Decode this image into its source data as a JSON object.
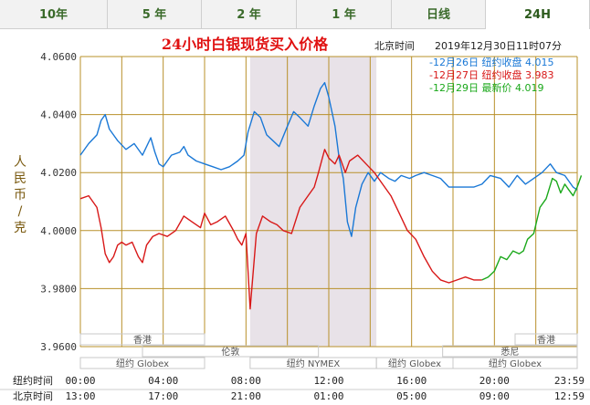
{
  "tabs": [
    {
      "label": "10年",
      "active": false
    },
    {
      "label": "5 年",
      "active": false
    },
    {
      "label": "2 年",
      "active": false
    },
    {
      "label": "1 年",
      "active": false
    },
    {
      "label": "日线",
      "active": false
    },
    {
      "label": "24H",
      "active": true
    }
  ],
  "colors": {
    "grid": "#b8902a",
    "blue": "#1a78d6",
    "red": "#d81818",
    "green": "#1aa81a",
    "title": "#e01010",
    "axis_text": "#333333",
    "shade": "#e8e2e8"
  },
  "chart_data": {
    "type": "line",
    "title": "24小时白银现货买入价格",
    "timestamp_label": "北京时间",
    "timestamp": "2019年12月30日11时07分",
    "ylabel": "人民币/克",
    "ylim": [
      3.96,
      4.06
    ],
    "yticks": [
      "4.0600",
      "4.0400",
      "4.0200",
      "4.0000",
      "3.9800",
      "3.9600"
    ],
    "x_ny": [
      "00:00",
      "04:00",
      "08:00",
      "12:00",
      "16:00",
      "20:00",
      "23:59"
    ],
    "x_bj": [
      "13:00",
      "17:00",
      "21:00",
      "01:00",
      "05:00",
      "09:00",
      "12:59"
    ],
    "x_row_labels": [
      "纽约时间",
      "北京时间"
    ],
    "xlim": [
      0,
      24
    ],
    "nymex_shade": [
      8.2,
      14.3
    ],
    "legend": [
      {
        "date": "12月26日",
        "label": "纽约收盘",
        "value": "4.015",
        "color": "#1a78d6"
      },
      {
        "date": "12月27日",
        "label": "纽约收盘",
        "value": "3.983",
        "color": "#d81818"
      },
      {
        "date": "12月29日",
        "label": "最新价",
        "value": "4.019",
        "color": "#1aa81a"
      }
    ],
    "series": [
      {
        "name": "12月26日",
        "color": "#1a78d6",
        "points": [
          [
            0,
            4.026
          ],
          [
            0.4,
            4.03
          ],
          [
            0.8,
            4.033
          ],
          [
            1.0,
            4.038
          ],
          [
            1.2,
            4.04
          ],
          [
            1.4,
            4.035
          ],
          [
            1.8,
            4.031
          ],
          [
            2.2,
            4.028
          ],
          [
            2.6,
            4.03
          ],
          [
            3.0,
            4.026
          ],
          [
            3.4,
            4.032
          ],
          [
            3.6,
            4.027
          ],
          [
            3.8,
            4.023
          ],
          [
            4.0,
            4.022
          ],
          [
            4.4,
            4.026
          ],
          [
            4.8,
            4.027
          ],
          [
            5.0,
            4.029
          ],
          [
            5.2,
            4.026
          ],
          [
            5.6,
            4.024
          ],
          [
            6.0,
            4.023
          ],
          [
            6.4,
            4.022
          ],
          [
            6.8,
            4.021
          ],
          [
            7.2,
            4.022
          ],
          [
            7.6,
            4.024
          ],
          [
            7.9,
            4.026
          ],
          [
            8.1,
            4.034
          ],
          [
            8.4,
            4.041
          ],
          [
            8.7,
            4.039
          ],
          [
            9.0,
            4.033
          ],
          [
            9.3,
            4.031
          ],
          [
            9.6,
            4.029
          ],
          [
            10.0,
            4.036
          ],
          [
            10.3,
            4.041
          ],
          [
            10.6,
            4.039
          ],
          [
            11.0,
            4.036
          ],
          [
            11.3,
            4.043
          ],
          [
            11.6,
            4.049
          ],
          [
            11.8,
            4.051
          ],
          [
            12.0,
            4.046
          ],
          [
            12.3,
            4.036
          ],
          [
            12.5,
            4.025
          ],
          [
            12.7,
            4.018
          ],
          [
            12.9,
            4.003
          ],
          [
            13.1,
            3.998
          ],
          [
            13.3,
            4.008
          ],
          [
            13.6,
            4.016
          ],
          [
            13.9,
            4.02
          ],
          [
            14.2,
            4.017
          ],
          [
            14.5,
            4.02
          ],
          [
            14.9,
            4.018
          ],
          [
            15.2,
            4.017
          ],
          [
            15.5,
            4.019
          ],
          [
            15.9,
            4.018
          ],
          [
            16.2,
            4.019
          ],
          [
            16.6,
            4.02
          ],
          [
            17.0,
            4.019
          ],
          [
            17.4,
            4.018
          ],
          [
            17.8,
            4.015
          ],
          [
            18.5,
            4.015
          ],
          [
            19.0,
            4.015
          ],
          [
            19.4,
            4.016
          ],
          [
            19.8,
            4.019
          ],
          [
            20.3,
            4.018
          ],
          [
            20.7,
            4.015
          ],
          [
            21.1,
            4.019
          ],
          [
            21.5,
            4.016
          ],
          [
            21.9,
            4.018
          ],
          [
            22.3,
            4.02
          ],
          [
            22.7,
            4.023
          ],
          [
            23.0,
            4.02
          ],
          [
            23.4,
            4.019
          ],
          [
            23.8,
            4.015
          ],
          [
            24.0,
            4.014
          ]
        ]
      },
      {
        "name": "12月27日",
        "color": "#d81818",
        "points": [
          [
            0,
            4.011
          ],
          [
            0.4,
            4.012
          ],
          [
            0.8,
            4.008
          ],
          [
            1.0,
            4.001
          ],
          [
            1.2,
            3.992
          ],
          [
            1.4,
            3.989
          ],
          [
            1.6,
            3.991
          ],
          [
            1.8,
            3.995
          ],
          [
            2.0,
            3.996
          ],
          [
            2.2,
            3.995
          ],
          [
            2.5,
            3.996
          ],
          [
            2.8,
            3.991
          ],
          [
            3.0,
            3.989
          ],
          [
            3.2,
            3.995
          ],
          [
            3.5,
            3.998
          ],
          [
            3.8,
            3.999
          ],
          [
            4.2,
            3.998
          ],
          [
            4.6,
            4.0
          ],
          [
            5.0,
            4.005
          ],
          [
            5.4,
            4.003
          ],
          [
            5.8,
            4.001
          ],
          [
            6.0,
            4.006
          ],
          [
            6.3,
            4.002
          ],
          [
            6.6,
            4.003
          ],
          [
            7.0,
            4.005
          ],
          [
            7.4,
            4.0
          ],
          [
            7.6,
            3.997
          ],
          [
            7.8,
            3.995
          ],
          [
            8.0,
            3.999
          ],
          [
            8.2,
            3.973
          ],
          [
            8.5,
            3.999
          ],
          [
            8.8,
            4.005
          ],
          [
            9.2,
            4.003
          ],
          [
            9.5,
            4.002
          ],
          [
            9.8,
            4.0
          ],
          [
            10.2,
            3.999
          ],
          [
            10.6,
            4.008
          ],
          [
            11.0,
            4.012
          ],
          [
            11.3,
            4.015
          ],
          [
            11.5,
            4.02
          ],
          [
            11.8,
            4.028
          ],
          [
            12.0,
            4.025
          ],
          [
            12.3,
            4.023
          ],
          [
            12.5,
            4.026
          ],
          [
            12.8,
            4.02
          ],
          [
            13.0,
            4.024
          ],
          [
            13.4,
            4.026
          ],
          [
            13.8,
            4.023
          ],
          [
            14.2,
            4.02
          ],
          [
            14.6,
            4.016
          ],
          [
            15.0,
            4.012
          ],
          [
            15.4,
            4.006
          ],
          [
            15.8,
            4.0
          ],
          [
            16.2,
            3.997
          ],
          [
            16.6,
            3.991
          ],
          [
            17.0,
            3.986
          ],
          [
            17.4,
            3.983
          ],
          [
            17.8,
            3.982
          ],
          [
            18.2,
            3.983
          ],
          [
            18.6,
            3.984
          ],
          [
            19.0,
            3.983
          ],
          [
            19.4,
            3.983
          ]
        ]
      },
      {
        "name": "12月29日",
        "color": "#1aa81a",
        "points": [
          [
            19.4,
            3.983
          ],
          [
            19.7,
            3.984
          ],
          [
            20.0,
            3.986
          ],
          [
            20.3,
            3.991
          ],
          [
            20.6,
            3.99
          ],
          [
            20.9,
            3.993
          ],
          [
            21.2,
            3.992
          ],
          [
            21.4,
            3.993
          ],
          [
            21.6,
            3.997
          ],
          [
            21.9,
            3.999
          ],
          [
            22.2,
            4.008
          ],
          [
            22.5,
            4.011
          ],
          [
            22.8,
            4.018
          ],
          [
            23.0,
            4.017
          ],
          [
            23.2,
            4.013
          ],
          [
            23.4,
            4.016
          ],
          [
            23.6,
            4.014
          ],
          [
            23.8,
            4.012
          ],
          [
            24.0,
            4.015
          ],
          [
            24.2,
            4.019
          ]
        ]
      }
    ],
    "markets": [
      {
        "label": "香港",
        "start": 0,
        "end": 6,
        "row": 0
      },
      {
        "label": "伦敦",
        "start": 3,
        "end": 11.5,
        "row": 1
      },
      {
        "label": "纽约 Globex",
        "start": 0,
        "end": 6,
        "row": 2
      },
      {
        "label": "纽约 NYMEX",
        "start": 8.2,
        "end": 14.3,
        "row": 2
      },
      {
        "label": "纽约 Globex",
        "start": 14.3,
        "end": 18,
        "row": 2
      },
      {
        "label": "香港",
        "start": 21,
        "end": 24,
        "row": 0
      },
      {
        "label": "悉尼",
        "start": 17.5,
        "end": 24,
        "row": 1
      },
      {
        "label": "纽约 Globex",
        "start": 18,
        "end": 24,
        "row": 2
      }
    ]
  }
}
